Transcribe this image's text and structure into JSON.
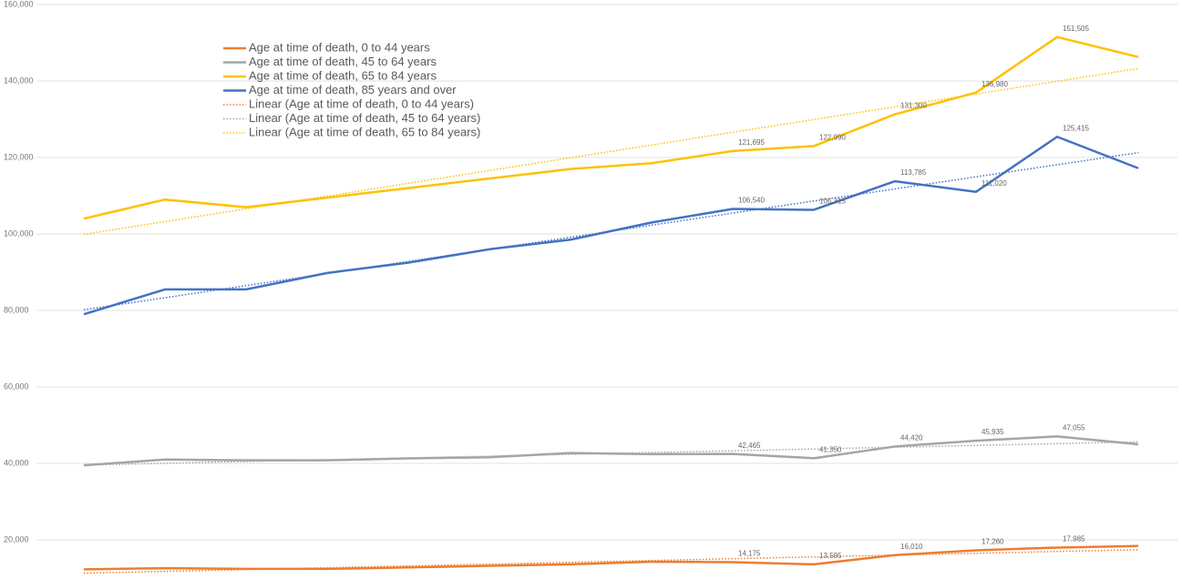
{
  "chart_data": {
    "type": "line",
    "categories": [
      null,
      null,
      null,
      null,
      null,
      null,
      null,
      null,
      null,
      null,
      null,
      null,
      null,
      null
    ],
    "ylim": [
      10000,
      160000
    ],
    "yticks": [
      {
        "value": 20000,
        "label": "20,000"
      },
      {
        "value": 40000,
        "label": "40,000"
      },
      {
        "value": 60000,
        "label": "60,000"
      },
      {
        "value": 80000,
        "label": "80,000"
      },
      {
        "value": 100000,
        "label": "100,000"
      },
      {
        "value": 120000,
        "label": "120,000"
      },
      {
        "value": 140000,
        "label": "140,000"
      },
      {
        "value": 160000,
        "label": "160,000"
      }
    ],
    "grid": true,
    "series": [
      {
        "name": "Age at time of death, 0 to 44 years",
        "color": "#ed7d31",
        "trendline": true,
        "trendline_name": "Linear (Age at time of death, 0 to 44 years)",
        "values": [
          12300,
          12600,
          12400,
          12400,
          12800,
          13200,
          13600,
          14300,
          14175,
          13595,
          16010,
          17260,
          17985,
          18400
        ],
        "value_labels": [
          null,
          null,
          null,
          null,
          null,
          null,
          null,
          null,
          "14,175",
          "13,595",
          "16,010",
          "17,260",
          "17,985",
          null
        ]
      },
      {
        "name": "Age at time of death, 45 to 64 years",
        "color": "#a5a5a5",
        "trendline": true,
        "trendline_name": "Linear (Age at time of death, 45 to 64 years)",
        "values": [
          39500,
          41000,
          40800,
          40800,
          41300,
          41600,
          42700,
          42400,
          42465,
          41350,
          44420,
          45935,
          47055,
          45000
        ],
        "value_labels": [
          null,
          null,
          null,
          null,
          null,
          null,
          null,
          null,
          "42,465",
          "41,350",
          "44,420",
          "45,935",
          "47,055",
          null
        ]
      },
      {
        "name": "Age at time of death, 65 to 84 years",
        "color": "#ffc000",
        "trendline": true,
        "trendline_name": "Linear (Age at time of death, 65 to 84 years)",
        "values": [
          104000,
          109000,
          107000,
          109500,
          112000,
          114500,
          117000,
          118500,
          121695,
          122990,
          131300,
          136980,
          151505,
          146300
        ],
        "value_labels": [
          null,
          null,
          null,
          null,
          null,
          null,
          null,
          null,
          "121,695",
          "122,990",
          "131,300",
          "136,980",
          "151,505",
          null
        ]
      },
      {
        "name": "Age at time of death, 85 years and over",
        "color": "#4472c4",
        "trendline": true,
        "values": [
          79000,
          85500,
          85500,
          89800,
          92500,
          96000,
          98500,
          103000,
          106540,
          106315,
          113785,
          111020,
          125415,
          117200
        ],
        "value_labels": [
          null,
          null,
          null,
          null,
          null,
          null,
          null,
          null,
          "106,540",
          "106,315",
          "113,785",
          "111,020",
          "125,415",
          null
        ]
      }
    ]
  }
}
